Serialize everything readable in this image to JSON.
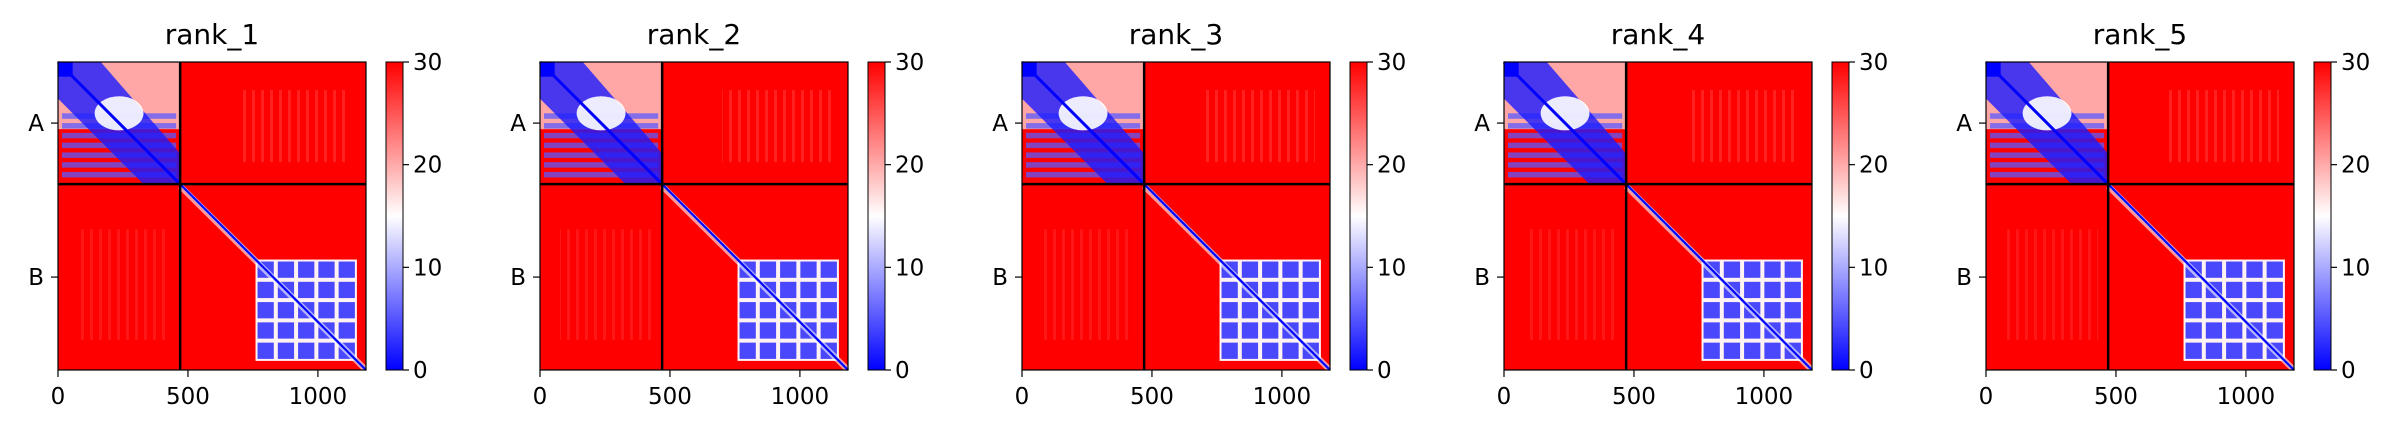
{
  "chart_data": [
    {
      "type": "heatmap",
      "title": "rank_1",
      "row_labels": [
        "A",
        "B"
      ],
      "x_ticks": [
        0,
        500,
        1000
      ],
      "xlim": [
        0,
        1185
      ],
      "chain_boundary": 470,
      "colorbar": {
        "min": 0,
        "max": 30,
        "ticks": [
          0,
          10,
          20,
          30
        ],
        "colors": [
          "#0000ff",
          "#ffffff",
          "#ff0000"
        ]
      }
    },
    {
      "type": "heatmap",
      "title": "rank_2",
      "row_labels": [
        "A",
        "B"
      ],
      "x_ticks": [
        0,
        500,
        1000
      ],
      "xlim": [
        0,
        1185
      ],
      "chain_boundary": 470,
      "colorbar": {
        "min": 0,
        "max": 30,
        "ticks": [
          0,
          10,
          20,
          30
        ],
        "colors": [
          "#0000ff",
          "#ffffff",
          "#ff0000"
        ]
      }
    },
    {
      "type": "heatmap",
      "title": "rank_3",
      "row_labels": [
        "A",
        "B"
      ],
      "x_ticks": [
        0,
        500,
        1000
      ],
      "xlim": [
        0,
        1185
      ],
      "chain_boundary": 470,
      "colorbar": {
        "min": 0,
        "max": 30,
        "ticks": [
          0,
          10,
          20,
          30
        ],
        "colors": [
          "#0000ff",
          "#ffffff",
          "#ff0000"
        ]
      }
    },
    {
      "type": "heatmap",
      "title": "rank_4",
      "row_labels": [
        "A",
        "B"
      ],
      "x_ticks": [
        0,
        500,
        1000
      ],
      "xlim": [
        0,
        1185
      ],
      "chain_boundary": 470,
      "colorbar": {
        "min": 0,
        "max": 30,
        "ticks": [
          0,
          10,
          20,
          30
        ],
        "colors": [
          "#0000ff",
          "#ffffff",
          "#ff0000"
        ]
      }
    },
    {
      "type": "heatmap",
      "title": "rank_5",
      "row_labels": [
        "A",
        "B"
      ],
      "x_ticks": [
        0,
        500,
        1000
      ],
      "xlim": [
        0,
        1185
      ],
      "chain_boundary": 470,
      "colorbar": {
        "min": 0,
        "max": 30,
        "ticks": [
          0,
          10,
          20,
          30
        ],
        "colors": [
          "#0000ff",
          "#ffffff",
          "#ff0000"
        ]
      }
    }
  ]
}
